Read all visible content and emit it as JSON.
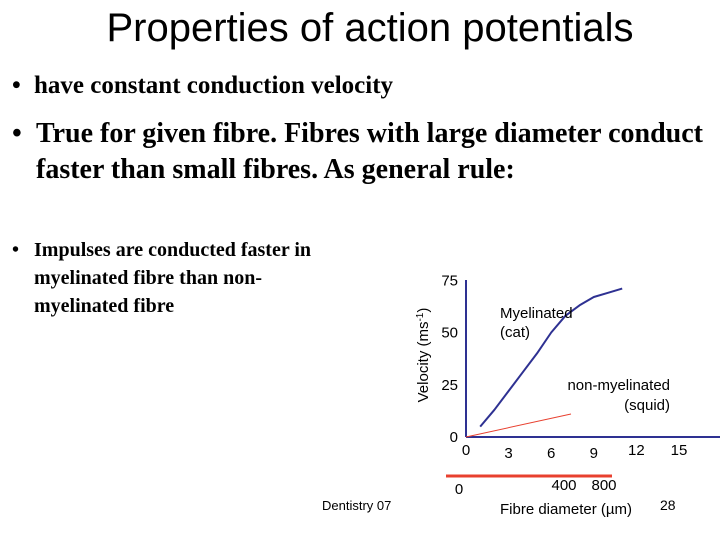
{
  "slide": {
    "title": "Properties of action potentials",
    "bullet_char": "•",
    "bullets": [
      "have constant conduction velocity",
      "True for given fibre. Fibres with large diameter conduct faster than small fibres. As general rule:",
      "Impulses are conducted faster in myelinated fibre than non- myelinated fibre"
    ],
    "footer_left": "Dentistry 07",
    "page_number": "28"
  },
  "chart_data": {
    "type": "line",
    "ylabel": "Velocity (ms-1)",
    "ylabel_base": "Velocity (ms",
    "ylabel_sup": "-1",
    "ylabel_close": ")",
    "xlabel": "Fibre diameter (µm)",
    "y_ticks": [
      "75",
      "50",
      "25",
      "0"
    ],
    "x_ticks_myelinated": [
      "0",
      "3",
      "6",
      "9",
      "12",
      "15"
    ],
    "x_ticks_nonmyelinated": [
      "0",
      "400",
      "800"
    ],
    "ylim": [
      0,
      80
    ],
    "series": [
      {
        "name": "Myelinated (cat)",
        "name_lines": [
          "Myelinated",
          "(cat)"
        ],
        "color": "#2e3192",
        "x_axis": "myelinated",
        "x": [
          1,
          2,
          3,
          4,
          5,
          6,
          7,
          8,
          9,
          10,
          11
        ],
        "y": [
          5,
          13,
          22,
          31,
          40,
          50,
          58,
          63,
          67,
          69,
          71
        ]
      },
      {
        "name": "non-myelinated (squid)",
        "name_lines": [
          "non-myelinated",
          "(squid)"
        ],
        "color": "#e8402f",
        "x_axis": "non-myelinated",
        "x": [
          0,
          1050
        ],
        "y": [
          0,
          11
        ]
      }
    ]
  },
  "colors": {
    "axis": "#2e3192",
    "nonmyelinated": "#e8402f",
    "myelinated": "#2e3192"
  }
}
